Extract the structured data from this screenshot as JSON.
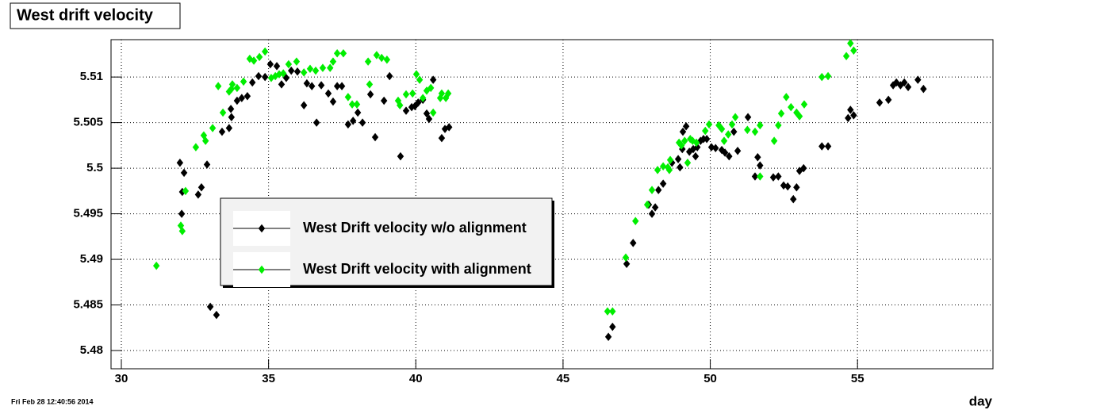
{
  "chart_data": {
    "type": "scatter",
    "title": "West drift velocity",
    "xlabel": "day",
    "timestamp": "Fri Feb 28 12:40:56 2014",
    "xlim": [
      29.65,
      59.6
    ],
    "ylim": [
      5.478,
      5.5141
    ],
    "xticks": [
      30,
      35,
      40,
      45,
      50,
      55
    ],
    "yticks": [
      5.48,
      5.485,
      5.49,
      5.495,
      5.5,
      5.505,
      5.51
    ],
    "grid": true,
    "legend": "center-left",
    "series": [
      {
        "name": "West Drift velocity w/o alignment",
        "color": "#000000",
        "x": [
          31.99,
          32.07,
          32.13,
          32.05,
          32.61,
          32.72,
          32.91,
          33.02,
          33.23,
          33.42,
          33.66,
          33.74,
          33.72,
          33.93,
          34.09,
          34.28,
          34.45,
          34.66,
          34.88,
          35.06,
          35.28,
          35.44,
          35.6,
          35.77,
          35.98,
          36.2,
          36.3,
          36.47,
          36.63,
          36.79,
          37.03,
          37.19,
          37.33,
          37.49,
          37.7,
          37.87,
          38.03,
          38.19,
          38.46,
          38.62,
          38.92,
          39.11,
          39.48,
          39.67,
          39.86,
          39.97,
          40.08,
          40.24,
          40.37,
          40.45,
          40.59,
          40.88,
          40.99,
          41.13,
          46.54,
          46.68,
          47.16,
          47.38,
          47.91,
          48.02,
          48.13,
          48.24,
          48.4,
          48.7,
          48.91,
          48.97,
          49.05,
          49.07,
          49.18,
          49.29,
          49.42,
          49.5,
          49.56,
          49.67,
          49.77,
          49.88,
          50.04,
          50.18,
          50.39,
          50.5,
          50.64,
          50.8,
          50.93,
          51.28,
          51.52,
          51.61,
          51.69,
          52.14,
          52.31,
          52.49,
          52.63,
          52.82,
          52.93,
          53.03,
          53.17,
          53.79,
          54.0,
          54.68,
          54.76,
          54.87,
          55.75,
          56.05,
          56.21,
          56.32,
          56.46,
          56.59,
          56.72,
          57.05,
          57.24
        ],
        "values": [
          5.5006,
          5.4974,
          5.4995,
          5.495,
          5.4971,
          5.4979,
          5.5004,
          5.4848,
          5.4839,
          5.504,
          5.5044,
          5.5056,
          5.5065,
          5.5074,
          5.5077,
          5.5079,
          5.5094,
          5.5101,
          5.51,
          5.5114,
          5.5112,
          5.5092,
          5.5099,
          5.5107,
          5.5106,
          5.5069,
          5.5093,
          5.509,
          5.505,
          5.5091,
          5.5082,
          5.5073,
          5.509,
          5.509,
          5.5048,
          5.5052,
          5.5061,
          5.505,
          5.5081,
          5.5034,
          5.5074,
          5.5101,
          5.5013,
          5.5063,
          5.5067,
          5.5068,
          5.5072,
          5.5075,
          5.506,
          5.5054,
          5.5097,
          5.5033,
          5.5043,
          5.5045,
          5.4815,
          5.4826,
          5.4895,
          5.4918,
          5.496,
          5.495,
          5.4957,
          5.4976,
          5.4983,
          5.5006,
          5.501,
          5.5001,
          5.5021,
          5.504,
          5.5046,
          5.5018,
          5.5021,
          5.5013,
          5.5023,
          5.503,
          5.5032,
          5.5032,
          5.5023,
          5.5022,
          5.502,
          5.5017,
          5.5013,
          5.504,
          5.5019,
          5.5056,
          5.4991,
          5.5012,
          5.5003,
          5.499,
          5.4991,
          5.4981,
          5.498,
          5.4966,
          5.4979,
          5.4997,
          5.5,
          5.5024,
          5.5024,
          5.5055,
          5.5064,
          5.5058,
          5.5072,
          5.5075,
          5.5091,
          5.5094,
          5.5091,
          5.5094,
          5.5089,
          5.5097,
          5.5087
        ]
      },
      {
        "name": "West Drift velocity with alignment",
        "color": "#00ee00",
        "x": [
          31.19,
          32.02,
          32.07,
          32.18,
          32.53,
          32.8,
          32.86,
          33.1,
          33.29,
          33.45,
          33.66,
          33.74,
          33.77,
          33.93,
          34.15,
          34.36,
          34.5,
          34.69,
          34.88,
          35.09,
          35.23,
          35.36,
          35.5,
          35.68,
          35.95,
          36.2,
          36.41,
          36.6,
          36.84,
          37.09,
          37.19,
          37.33,
          37.54,
          37.7,
          37.84,
          38.0,
          38.38,
          38.43,
          38.67,
          38.84,
          39.02,
          39.4,
          39.46,
          39.67,
          39.89,
          40.02,
          40.13,
          40.24,
          40.37,
          40.51,
          40.59,
          40.83,
          40.88,
          41.02,
          41.1,
          46.51,
          46.68,
          47.13,
          47.46,
          47.86,
          48.02,
          48.21,
          48.4,
          48.56,
          48.61,
          48.64,
          48.94,
          49.02,
          49.13,
          49.23,
          49.32,
          49.4,
          49.53,
          49.83,
          49.96,
          50.29,
          50.39,
          50.47,
          50.61,
          50.74,
          50.85,
          51.26,
          51.52,
          51.69,
          51.69,
          52.17,
          52.31,
          52.41,
          52.58,
          52.74,
          52.93,
          53.03,
          53.19,
          53.79,
          54.0,
          54.62,
          54.76,
          54.87
        ],
        "values": [
          5.4893,
          5.4937,
          5.4931,
          5.4975,
          5.5023,
          5.5036,
          5.503,
          5.5044,
          5.509,
          5.5061,
          5.5084,
          5.5087,
          5.5092,
          5.5088,
          5.5095,
          5.512,
          5.5118,
          5.5122,
          5.5128,
          5.5099,
          5.5101,
          5.5103,
          5.5104,
          5.5114,
          5.5117,
          5.5105,
          5.5109,
          5.5107,
          5.511,
          5.511,
          5.5117,
          5.5126,
          5.5126,
          5.5078,
          5.507,
          5.507,
          5.5117,
          5.5092,
          5.5124,
          5.5121,
          5.5119,
          5.5074,
          5.5069,
          5.5081,
          5.5082,
          5.5103,
          5.5097,
          5.5077,
          5.5085,
          5.5088,
          5.5061,
          5.5077,
          5.5082,
          5.5077,
          5.5082,
          5.4843,
          5.4843,
          5.4902,
          5.4942,
          5.496,
          5.4976,
          5.4998,
          5.5002,
          5.5001,
          5.4998,
          5.5009,
          5.5028,
          5.5025,
          5.503,
          5.5006,
          5.5032,
          5.503,
          5.5028,
          5.5041,
          5.5048,
          5.5047,
          5.5043,
          5.503,
          5.5037,
          5.5048,
          5.5056,
          5.5042,
          5.504,
          5.5047,
          5.4991,
          5.503,
          5.5047,
          5.506,
          5.5078,
          5.5067,
          5.5061,
          5.5057,
          5.507,
          5.51,
          5.5101,
          5.5123,
          5.5137,
          5.5129
        ]
      }
    ]
  }
}
